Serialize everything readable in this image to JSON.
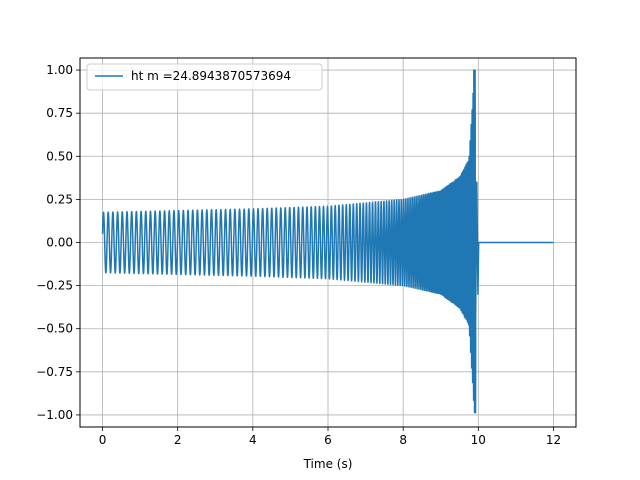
{
  "chart_data": {
    "type": "line",
    "title": "",
    "xlabel": "Time (s)",
    "ylabel": "",
    "xlim": [
      -0.6,
      12.6
    ],
    "ylim": [
      -1.07,
      1.07
    ],
    "grid": true,
    "legend_location": "upper-left",
    "x_ticks": [
      "0",
      "2",
      "4",
      "6",
      "8",
      "10",
      "12"
    ],
    "y_ticks": [
      "1.00",
      "0.75",
      "0.50",
      "0.25",
      "0.00",
      "−0.25",
      "−0.50",
      "−0.75",
      "−1.00"
    ],
    "series": [
      {
        "name": "ht m =24.8943870573694",
        "color": "#1f77b4",
        "description": "chirp: amplitude ~0.17 at t=0 growing to peak ~1.0 near t=9.9, zero after t=10 until t=12",
        "start_value": 0.05,
        "envelope": {
          "t": [
            0,
            2,
            4,
            6,
            8,
            9,
            9.5,
            9.75,
            9.9
          ],
          "amp": [
            0.175,
            0.185,
            0.195,
            0.21,
            0.25,
            0.3,
            0.38,
            0.48,
            1.0
          ]
        },
        "merger_time": 9.93,
        "end_time": 12,
        "min_value": -0.96,
        "max_value": 1.0
      }
    ]
  }
}
